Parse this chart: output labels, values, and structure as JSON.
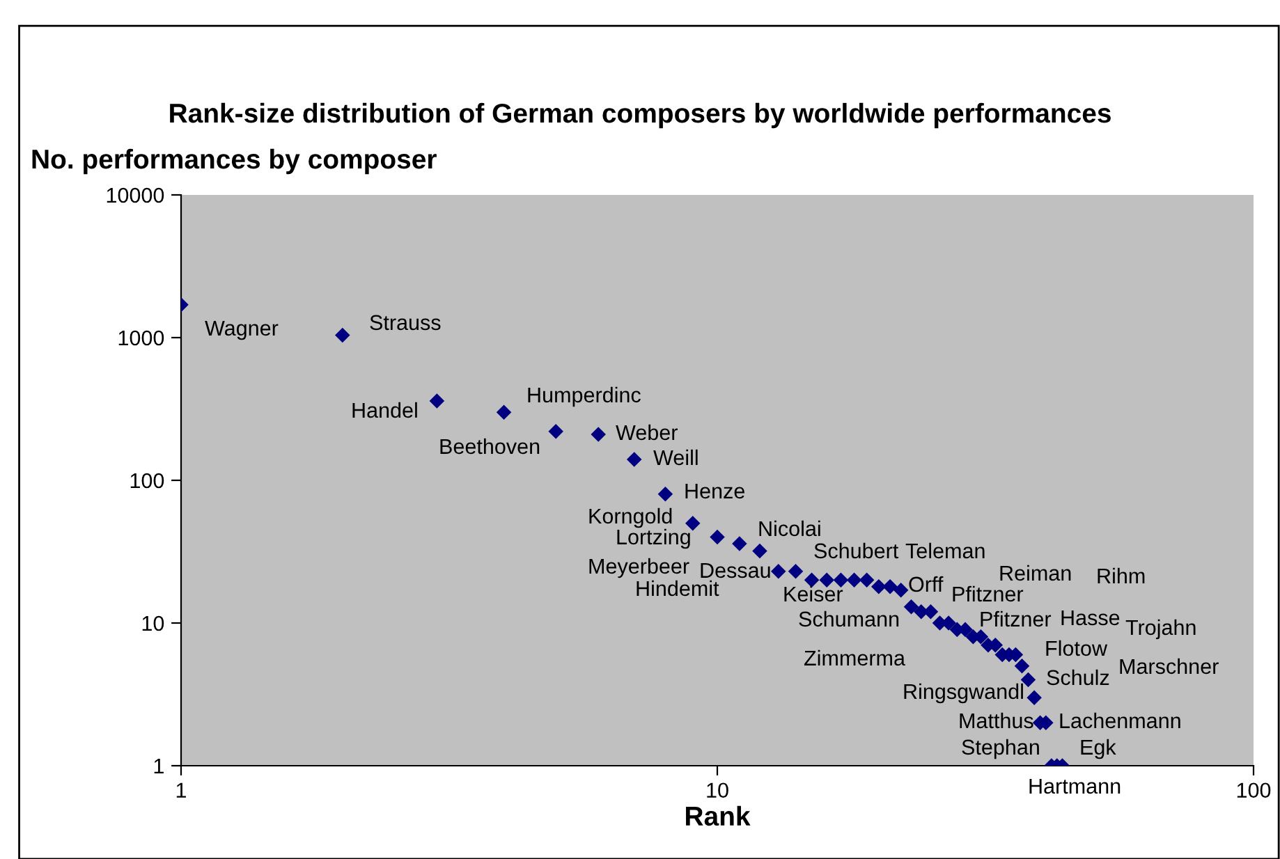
{
  "chart_data": {
    "type": "scatter",
    "title": "Rank-size distribution of German composers by worldwide performances",
    "xlabel": "Rank",
    "ylabel": "No. performances by composer",
    "log": "xy",
    "marker": "diamond",
    "grid": false,
    "x": [
      1,
      2,
      3,
      4,
      5,
      6,
      7,
      8,
      9,
      10,
      11,
      12,
      13,
      14,
      15,
      16,
      17,
      18,
      19,
      20,
      21,
      22,
      23,
      24,
      25,
      26,
      27,
      28,
      29,
      30,
      31,
      32,
      33,
      34,
      35,
      36,
      37,
      38,
      39,
      40,
      41,
      42,
      43,
      44
    ],
    "series": [
      {
        "color": "#000080",
        "values": [
          1700,
          1040,
          360,
          300,
          220,
          210,
          140,
          80,
          50,
          40,
          36,
          32,
          23,
          23,
          20,
          20,
          20,
          20,
          20,
          18,
          18,
          17,
          13,
          12,
          12,
          10,
          10,
          9,
          9,
          8,
          8,
          7,
          7,
          6,
          6,
          6,
          5,
          4,
          3,
          2,
          2,
          1,
          1,
          1
        ]
      }
    ],
    "xlim": [
      1,
      100
    ],
    "xticks": [
      1,
      10,
      100
    ],
    "ylim": [
      1,
      10000
    ],
    "yticks": [
      1,
      10,
      100,
      1000,
      10000
    ],
    "annotations": [
      "Wagner",
      "Strauss",
      "Handel",
      "Humperdinc",
      "Beethoven",
      "Weber",
      "Weill",
      "Henze",
      "Korngold",
      "Lortzing",
      "Nicolai",
      "Meyerbeer",
      "Hindemit",
      "Dessau",
      "Schubert",
      "Teleman",
      "Keiser",
      "Orff",
      "Pfitzner",
      "Reiman",
      "Rihm",
      "Schumann",
      "Pfitzner",
      "Hasse",
      "Trojahn",
      "Flotow",
      "Zimmerma",
      "Marschner",
      "Schulz",
      "Ringsgwandl",
      "Matthus",
      "Lachenmann",
      "Stephan",
      "Egk",
      "Hartmann"
    ]
  }
}
